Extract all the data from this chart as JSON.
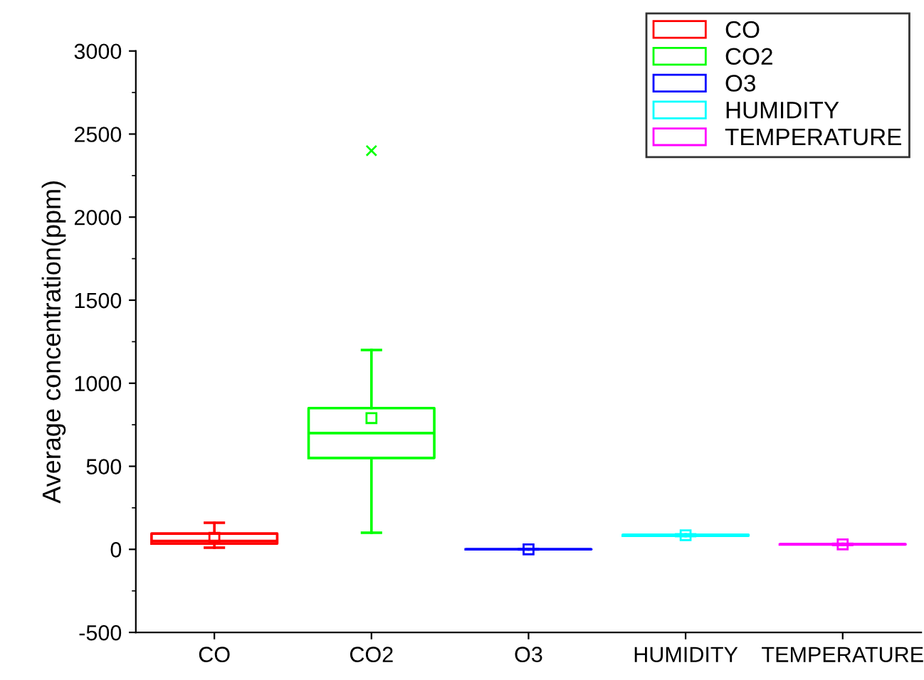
{
  "chart_data": {
    "type": "box",
    "ylabel": "Average concentration(ppm)",
    "categories": [
      "CO",
      "CO2",
      "O3",
      "HUMIDITY",
      "TEMPERATURE"
    ],
    "series": [
      {
        "name": "CO",
        "color": "#ff0000",
        "boxes": [
          {
            "low": 10,
            "q1": 35,
            "median": 50,
            "q3": 95,
            "high": 160,
            "mean": 70
          },
          null,
          null,
          null,
          null
        ]
      },
      {
        "name": "CO2",
        "color": "#00ff00",
        "boxes": [
          null,
          {
            "low": 100,
            "q1": 550,
            "median": 700,
            "q3": 850,
            "high": 1200,
            "mean": 790,
            "outliers": [
              2400
            ]
          },
          null,
          null,
          null
        ]
      },
      {
        "name": "O3",
        "color": "#0000ff",
        "boxes": [
          null,
          null,
          {
            "low": 0,
            "q1": 0,
            "median": 0,
            "q3": 0,
            "high": 0,
            "mean": 0
          },
          null,
          null
        ]
      },
      {
        "name": "HUMIDITY",
        "color": "#00ffff",
        "boxes": [
          null,
          null,
          null,
          {
            "low": 80,
            "q1": 82,
            "median": 85,
            "q3": 88,
            "high": 90,
            "mean": 85
          },
          null
        ]
      },
      {
        "name": "TEMPERATURE",
        "color": "#ff00ff",
        "boxes": [
          null,
          null,
          null,
          null,
          {
            "low": 27,
            "q1": 29,
            "median": 30,
            "q3": 31,
            "high": 33,
            "mean": 30
          }
        ]
      }
    ],
    "ylim": [
      -500,
      3000
    ],
    "yticks": [
      -500,
      0,
      500,
      1000,
      1500,
      2000,
      2500,
      3000
    ],
    "legend": "top right"
  }
}
